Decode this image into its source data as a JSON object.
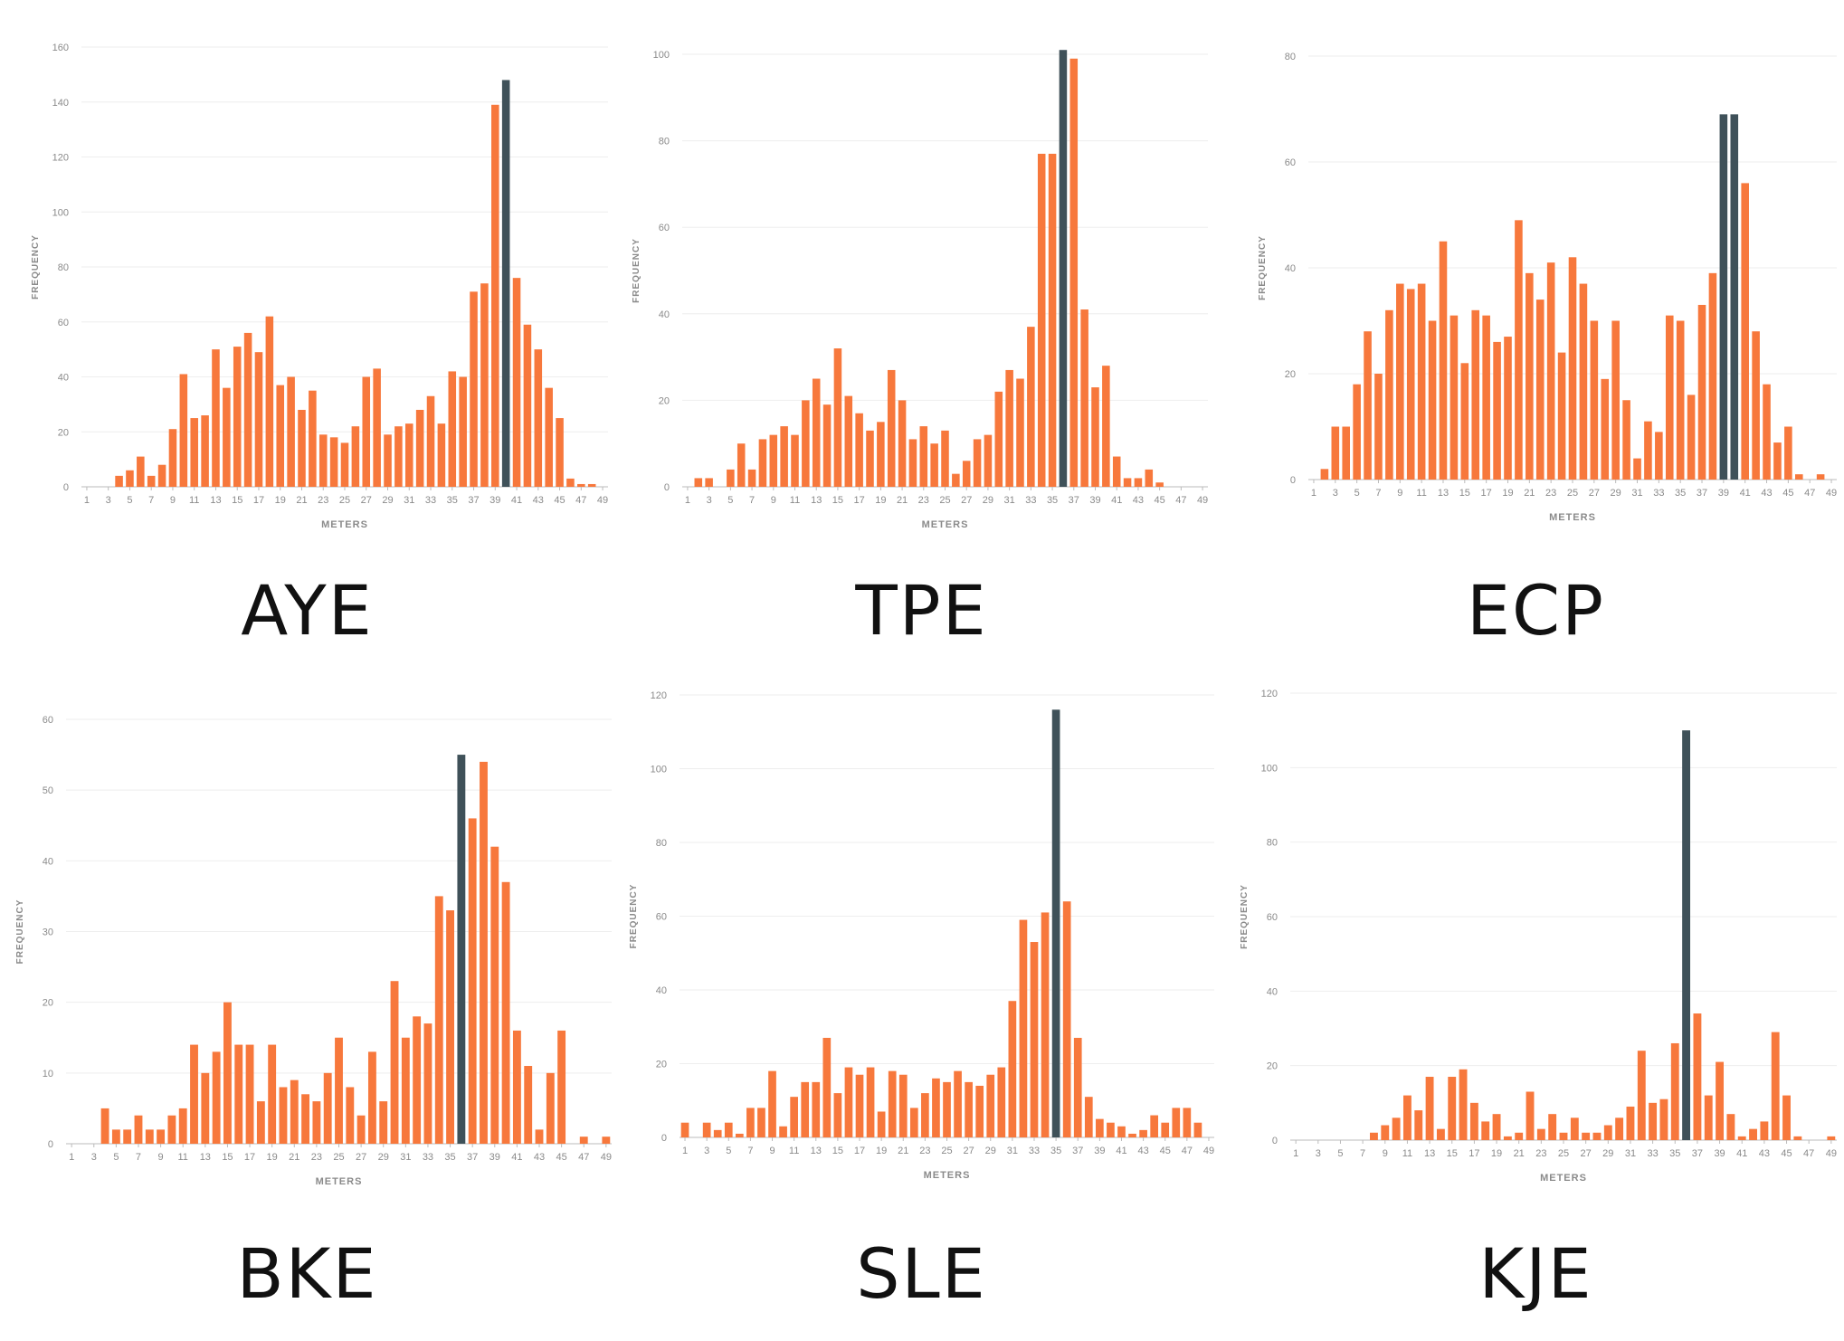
{
  "colors": {
    "bar": "#F7783C",
    "highlight": "#3F5159",
    "grid": "#eeeeee",
    "axis": "#bbbbbb",
    "text": "#8a8a8a"
  },
  "chart_data": [
    {
      "type": "bar",
      "caption": "AYE",
      "xlabel": "METERS",
      "ylabel": "FREQUENCY",
      "ylim": [
        0,
        160
      ],
      "yticks": [
        0,
        20,
        40,
        60,
        80,
        100,
        120,
        140,
        160
      ],
      "xticks": [
        "1",
        "3",
        "5",
        "7",
        "9",
        "11",
        "13",
        "15",
        "17",
        "19",
        "21",
        "23",
        "25",
        "27",
        "29",
        "31",
        "33",
        "35",
        "37",
        "39",
        "41",
        "43",
        "45",
        "47",
        "49"
      ],
      "categories": [
        1,
        2,
        3,
        4,
        5,
        6,
        7,
        8,
        9,
        10,
        11,
        12,
        13,
        14,
        15,
        16,
        17,
        18,
        19,
        20,
        21,
        22,
        23,
        24,
        25,
        26,
        27,
        28,
        29,
        30,
        31,
        32,
        33,
        34,
        35,
        36,
        37,
        38,
        39,
        40,
        41,
        42,
        43,
        44,
        45,
        46,
        47,
        48,
        49
      ],
      "values": [
        0,
        0,
        0,
        4,
        6,
        11,
        4,
        8,
        21,
        41,
        25,
        26,
        50,
        36,
        51,
        56,
        49,
        62,
        37,
        40,
        28,
        35,
        19,
        18,
        16,
        22,
        40,
        43,
        19,
        22,
        23,
        28,
        33,
        23,
        42,
        40,
        71,
        74,
        139,
        148,
        76,
        59,
        50,
        36,
        25,
        3,
        1,
        1,
        0
      ],
      "highlight_index": 39
    },
    {
      "type": "bar",
      "caption": "TPE",
      "xlabel": "METERS",
      "ylabel": "FREQUENCY",
      "ylim": [
        0,
        100
      ],
      "yticks": [
        0,
        20,
        40,
        60,
        80,
        100
      ],
      "xticks": [
        "1",
        "3",
        "5",
        "7",
        "9",
        "11",
        "13",
        "15",
        "17",
        "19",
        "21",
        "23",
        "25",
        "27",
        "29",
        "31",
        "33",
        "35",
        "37",
        "39",
        "41",
        "43",
        "45",
        "47",
        "49"
      ],
      "categories": [
        1,
        2,
        3,
        4,
        5,
        6,
        7,
        8,
        9,
        10,
        11,
        12,
        13,
        14,
        15,
        16,
        17,
        18,
        19,
        20,
        21,
        22,
        23,
        24,
        25,
        26,
        27,
        28,
        29,
        30,
        31,
        32,
        33,
        34,
        35,
        36,
        37,
        38,
        39,
        40,
        41,
        42,
        43,
        44,
        45,
        46,
        47,
        48,
        49
      ],
      "values": [
        0,
        2,
        2,
        0,
        4,
        10,
        4,
        11,
        12,
        14,
        12,
        20,
        25,
        19,
        32,
        21,
        17,
        13,
        15,
        27,
        20,
        11,
        14,
        10,
        13,
        3,
        6,
        11,
        12,
        22,
        27,
        25,
        37,
        77,
        77,
        101,
        99,
        41,
        23,
        28,
        7,
        2,
        2,
        4,
        1,
        0,
        0,
        0,
        0
      ],
      "highlight_index": 35
    },
    {
      "type": "bar",
      "caption": "ECP",
      "xlabel": "METERS",
      "ylabel": "FREQUENCY",
      "ylim": [
        0,
        80
      ],
      "yticks": [
        0,
        20,
        40,
        60,
        80
      ],
      "xticks": [
        "1",
        "3",
        "5",
        "7",
        "9",
        "11",
        "13",
        "15",
        "17",
        "19",
        "21",
        "23",
        "25",
        "27",
        "29",
        "31",
        "33",
        "35",
        "37",
        "39",
        "41",
        "43",
        "45",
        "47",
        "49"
      ],
      "categories": [
        1,
        2,
        3,
        4,
        5,
        6,
        7,
        8,
        9,
        10,
        11,
        12,
        13,
        14,
        15,
        16,
        17,
        18,
        19,
        20,
        21,
        22,
        23,
        24,
        25,
        26,
        27,
        28,
        29,
        30,
        31,
        32,
        33,
        34,
        35,
        36,
        37,
        38,
        39,
        40,
        41,
        42,
        43,
        44,
        45,
        46,
        47,
        48,
        49
      ],
      "values": [
        0,
        2,
        10,
        10,
        18,
        28,
        20,
        32,
        37,
        36,
        37,
        30,
        45,
        31,
        22,
        32,
        31,
        26,
        27,
        49,
        39,
        34,
        41,
        24,
        42,
        37,
        30,
        19,
        30,
        15,
        4,
        11,
        9,
        31,
        30,
        16,
        33,
        39,
        69,
        69,
        56,
        28,
        18,
        7,
        10,
        1,
        0,
        1,
        0
      ],
      "highlight_indices": [
        38,
        39
      ]
    },
    {
      "type": "bar",
      "caption": "BKE",
      "xlabel": "METERS",
      "ylabel": "FREQUENCY",
      "ylim": [
        0,
        60
      ],
      "yticks": [
        0,
        10,
        20,
        30,
        40,
        50,
        60
      ],
      "xticks": [
        "1",
        "3",
        "5",
        "7",
        "9",
        "11",
        "13",
        "15",
        "17",
        "19",
        "21",
        "23",
        "25",
        "27",
        "29",
        "31",
        "33",
        "35",
        "37",
        "39",
        "41",
        "43",
        "45",
        "47",
        "49"
      ],
      "categories": [
        1,
        2,
        3,
        4,
        5,
        6,
        7,
        8,
        9,
        10,
        11,
        12,
        13,
        14,
        15,
        16,
        17,
        18,
        19,
        20,
        21,
        22,
        23,
        24,
        25,
        26,
        27,
        28,
        29,
        30,
        31,
        32,
        33,
        34,
        35,
        36,
        37,
        38,
        39,
        40,
        41,
        42,
        43,
        44,
        45,
        46,
        47,
        48,
        49
      ],
      "values": [
        0,
        0,
        0,
        5,
        2,
        2,
        4,
        2,
        2,
        4,
        5,
        14,
        10,
        13,
        20,
        14,
        14,
        6,
        14,
        8,
        9,
        7,
        6,
        10,
        15,
        8,
        4,
        13,
        6,
        23,
        15,
        18,
        17,
        35,
        33,
        55,
        46,
        54,
        42,
        37,
        16,
        11,
        2,
        10,
        16,
        0,
        1,
        0,
        1
      ],
      "highlight_index": 35
    },
    {
      "type": "bar",
      "caption": "SLE",
      "xlabel": "METERS",
      "ylabel": "FREQUENCY",
      "ylim": [
        0,
        120
      ],
      "yticks": [
        0,
        20,
        40,
        60,
        80,
        100,
        120
      ],
      "xticks": [
        "1",
        "3",
        "5",
        "7",
        "9",
        "11",
        "13",
        "15",
        "17",
        "19",
        "21",
        "23",
        "25",
        "27",
        "29",
        "31",
        "33",
        "35",
        "37",
        "39",
        "41",
        "43",
        "45",
        "47",
        "49"
      ],
      "categories": [
        1,
        2,
        3,
        4,
        5,
        6,
        7,
        8,
        9,
        10,
        11,
        12,
        13,
        14,
        15,
        16,
        17,
        18,
        19,
        20,
        21,
        22,
        23,
        24,
        25,
        26,
        27,
        28,
        29,
        30,
        31,
        32,
        33,
        34,
        35,
        36,
        37,
        38,
        39,
        40,
        41,
        42,
        43,
        44,
        45,
        46,
        47,
        48,
        49
      ],
      "values": [
        4,
        0,
        4,
        2,
        4,
        1,
        8,
        8,
        18,
        3,
        11,
        15,
        15,
        27,
        12,
        19,
        17,
        19,
        7,
        18,
        17,
        8,
        12,
        16,
        15,
        18,
        15,
        14,
        17,
        19,
        37,
        59,
        53,
        61,
        116,
        64,
        27,
        11,
        5,
        4,
        3,
        1,
        2,
        6,
        4,
        8,
        8,
        4,
        0
      ],
      "highlight_index": 34
    },
    {
      "type": "bar",
      "caption": "KJE",
      "xlabel": "METERS",
      "ylabel": "FREQUENCY",
      "ylim": [
        0,
        120
      ],
      "yticks": [
        0,
        20,
        40,
        60,
        80,
        100,
        120
      ],
      "xticks": [
        "1",
        "3",
        "5",
        "7",
        "9",
        "11",
        "13",
        "15",
        "17",
        "19",
        "21",
        "23",
        "25",
        "27",
        "29",
        "31",
        "33",
        "35",
        "37",
        "39",
        "41",
        "43",
        "45",
        "47",
        "49"
      ],
      "categories": [
        1,
        2,
        3,
        4,
        5,
        6,
        7,
        8,
        9,
        10,
        11,
        12,
        13,
        14,
        15,
        16,
        17,
        18,
        19,
        20,
        21,
        22,
        23,
        24,
        25,
        26,
        27,
        28,
        29,
        30,
        31,
        32,
        33,
        34,
        35,
        36,
        37,
        38,
        39,
        40,
        41,
        42,
        43,
        44,
        45,
        46,
        47,
        48,
        49
      ],
      "values": [
        0,
        0,
        0,
        0,
        0,
        0,
        0,
        2,
        4,
        6,
        12,
        8,
        17,
        3,
        17,
        19,
        10,
        5,
        7,
        1,
        2,
        13,
        3,
        7,
        2,
        6,
        2,
        2,
        4,
        6,
        9,
        24,
        10,
        11,
        26,
        110,
        34,
        12,
        21,
        7,
        1,
        3,
        5,
        29,
        12,
        1,
        0,
        0,
        1
      ],
      "highlight_index": 35
    }
  ]
}
